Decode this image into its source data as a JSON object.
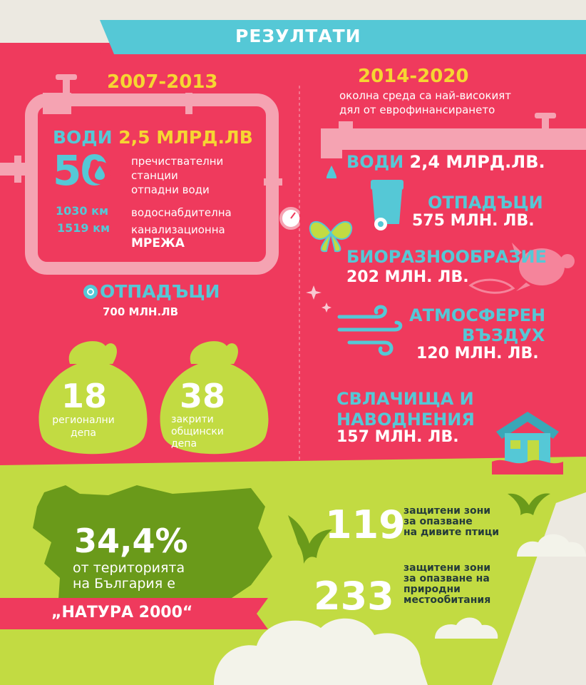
{
  "title": "РЕЗУЛТАТИ",
  "left": {
    "period": "2007-2013",
    "water_label": "ВОДИ",
    "water_amount": "2,5 МЛРД.ЛВ",
    "plants_count": "50",
    "plants_text_1": "пречиствателни",
    "plants_text_2": "станции",
    "plants_text_3": "отпадни води",
    "km_1": "1030 км",
    "km_1_text": "водоснабдителна",
    "km_2": "1519 км",
    "km_2_text": "канализационна",
    "network": "МРЕЖА",
    "waste_label": "ОТПАДЪЦИ",
    "waste_amount": "700 МЛН.ЛВ",
    "bag1_num": "18",
    "bag1_text_1": "регионални",
    "bag1_text_2": "депа",
    "bag2_num": "38",
    "bag2_text_1": "закрити",
    "bag2_text_2": "общински",
    "bag2_text_3": "депа"
  },
  "right": {
    "period": "2014-2020",
    "sub_1": "околна среда са най-високият",
    "sub_2": "дял от еврофинансирането",
    "water_label": "ВОДИ",
    "water_amount": "2,4 МЛРД.ЛВ.",
    "waste_label": "ОТПАДЪЦИ",
    "waste_amount": "575 МЛН. ЛВ.",
    "bio_label": "БИОРАЗНООБРАЗИЕ",
    "bio_amount": "202 МЛН. ЛВ.",
    "air_label_1": "АТМОСФЕРЕН",
    "air_label_2": "ВЪЗДУХ",
    "air_amount": "120 МЛН. ЛВ.",
    "flood_label_1": "СВЛАЧИЩА И",
    "flood_label_2": "НАВОДНЕНИЯ",
    "flood_amount": "157 МЛН. ЛВ."
  },
  "natura": {
    "percent": "34,4%",
    "text_1": "от територията",
    "text_2": "на България е",
    "banner": "„НАТУРА 2000“",
    "birds_num": "119",
    "birds_text_1": "защитени зони",
    "birds_text_2": "за опазване",
    "birds_text_3": "на дивите птици",
    "habitats_num": "233",
    "habitats_text_1": "защитени зони",
    "habitats_text_2": "за опазване на",
    "habitats_text_3": "природни",
    "habitats_text_4": "местообитания"
  },
  "colors": {
    "pink": "#ef3a5d",
    "teal": "#55c8d6",
    "yellow": "#f6d632",
    "lime": "#c2db42",
    "olive": "#6a9a1a",
    "dark": "#243b3a",
    "cream": "#ece9e1"
  }
}
